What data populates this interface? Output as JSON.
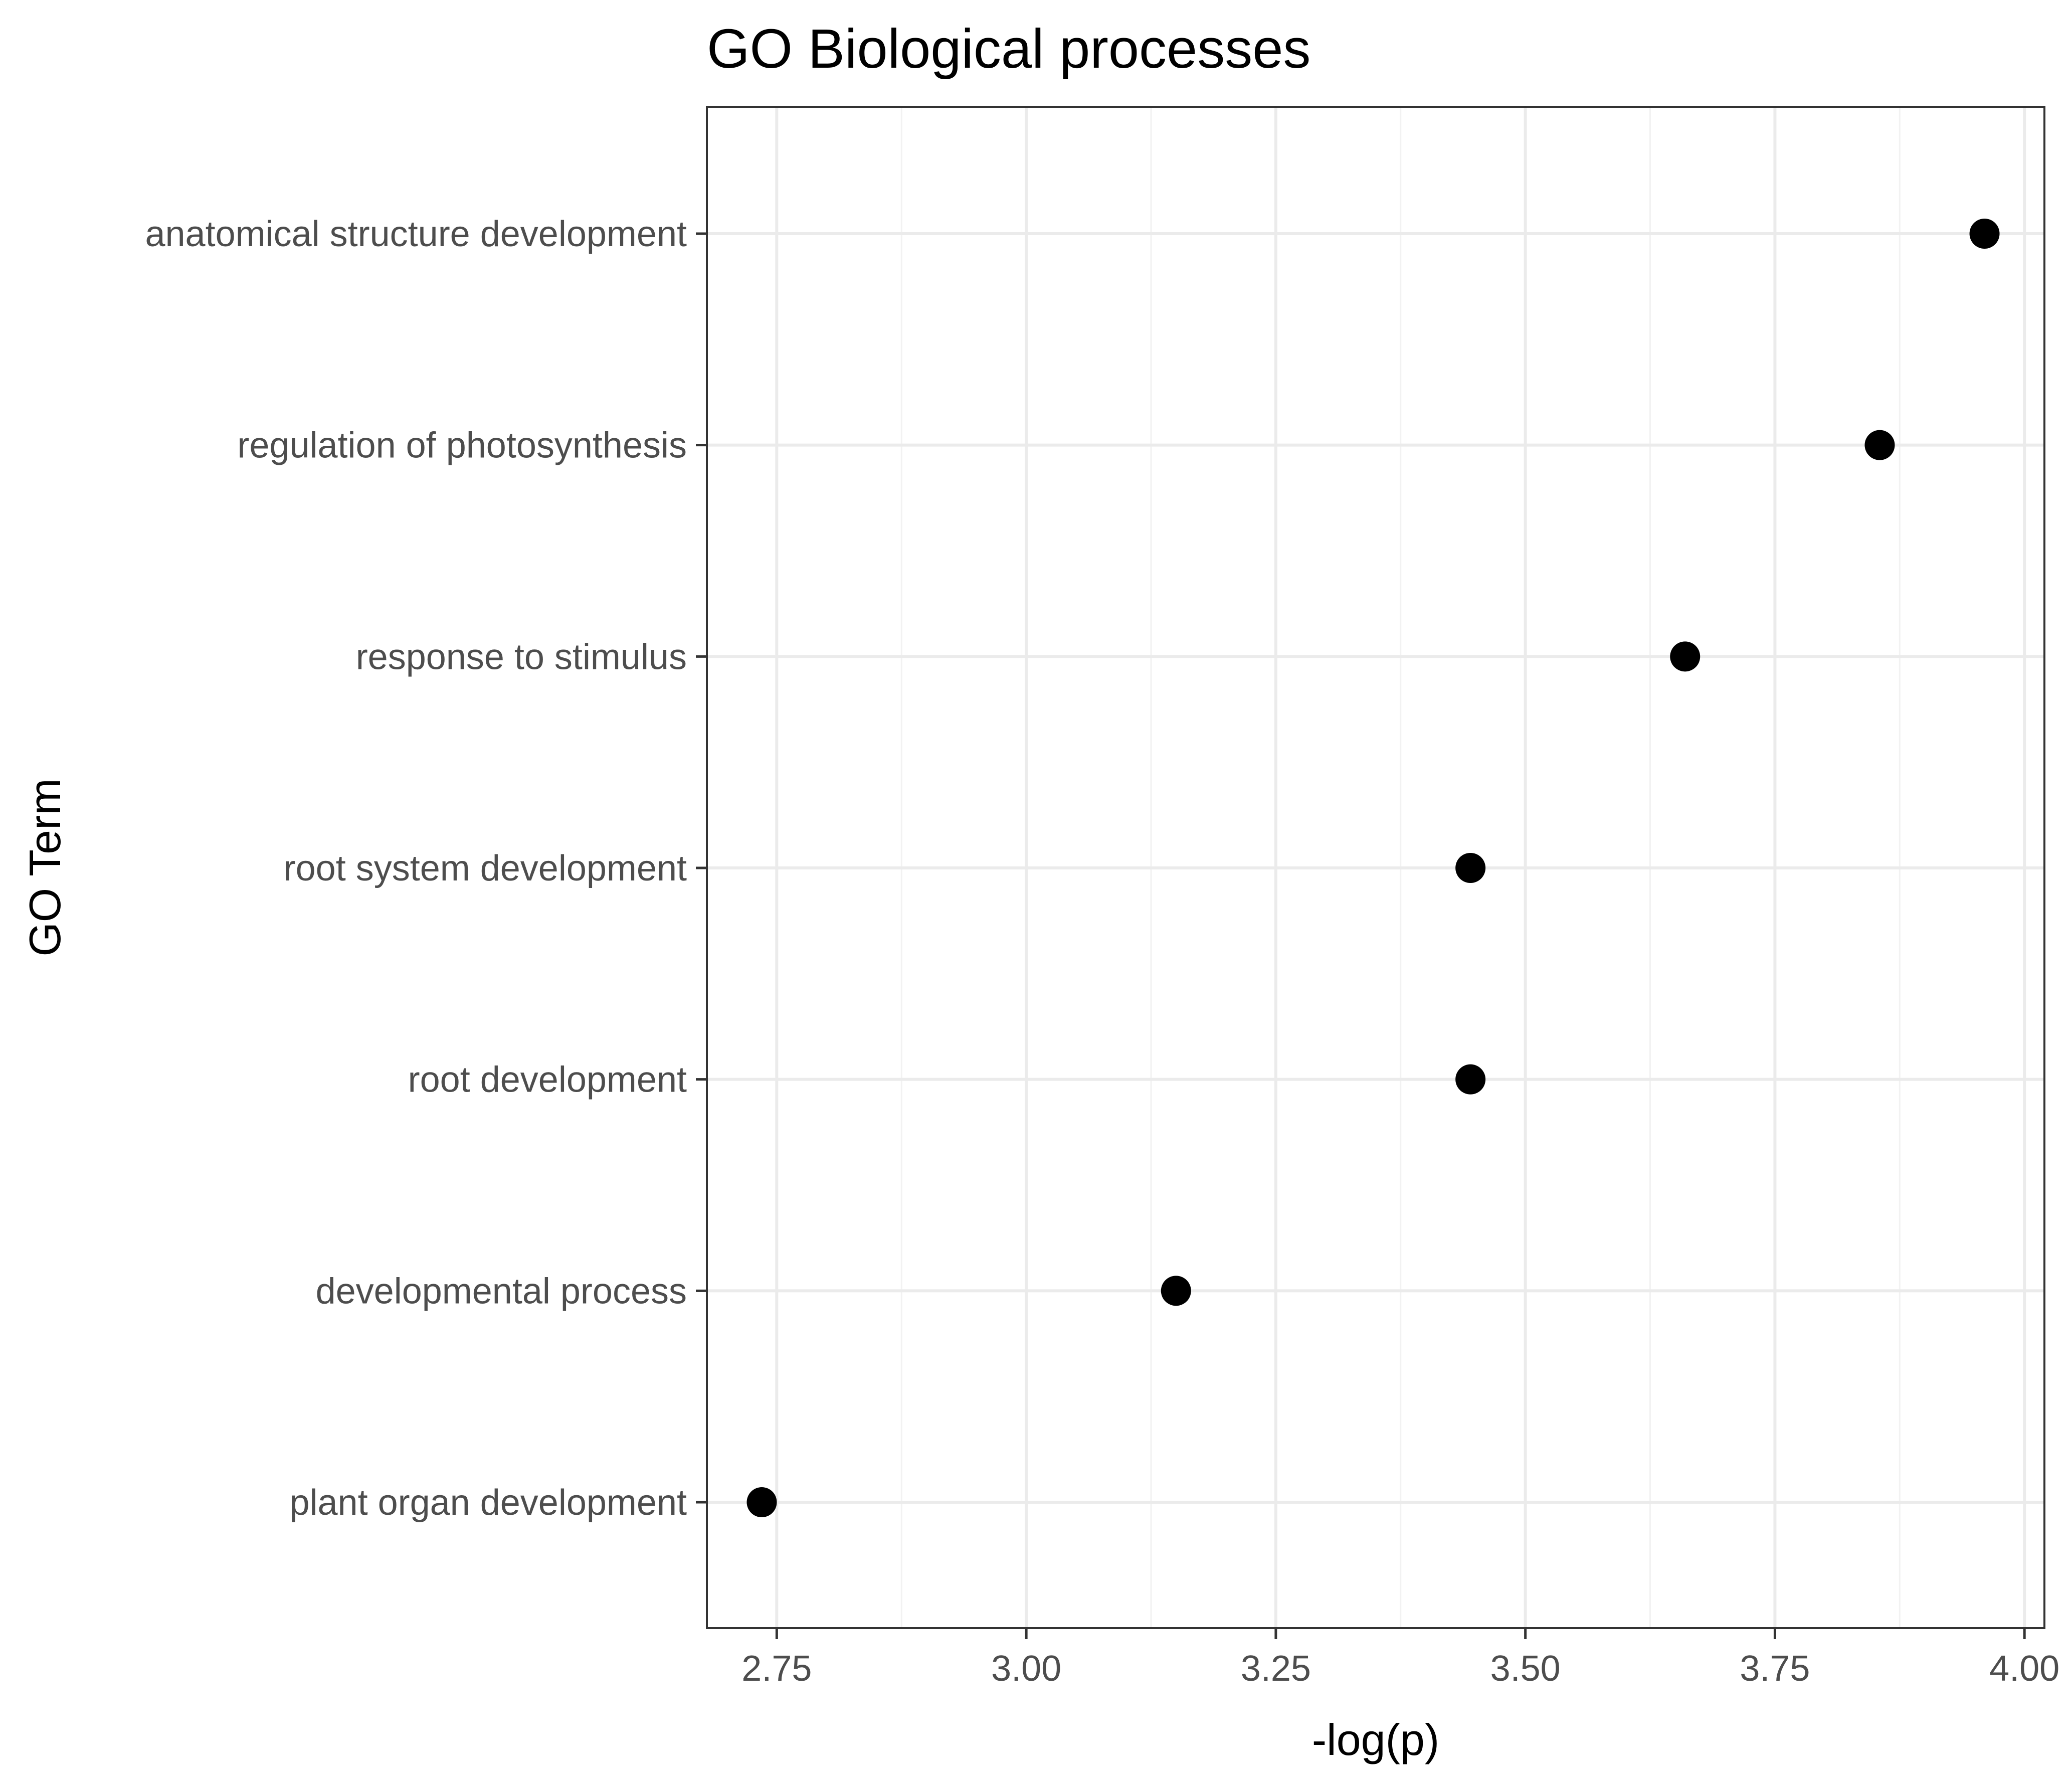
{
  "colors": {
    "background": "#ffffff",
    "panel_border": "#333333",
    "grid_major": "#ebebeb",
    "grid_minor": "#f2f2f2",
    "point": "#000000",
    "tick_label": "#4d4d4d"
  },
  "chart_data": {
    "type": "scatter",
    "title": "GO Biological processes",
    "xlabel": "-log(p)",
    "ylabel": "GO Term",
    "xlim": [
      2.68,
      4.02
    ],
    "x_ticks": [
      2.75,
      3.0,
      3.25,
      3.5,
      3.75,
      4.0
    ],
    "x_tick_labels": [
      "2.75",
      "3.00",
      "3.25",
      "3.50",
      "3.75",
      "4.00"
    ],
    "grid": true,
    "legend": "none",
    "categories": [
      "anatomical structure development",
      "regulation of photosynthesis",
      "response to stimulus",
      "root system development",
      "root development",
      "developmental process",
      "plant organ development"
    ],
    "points": [
      {
        "term": "anatomical structure development",
        "x": 3.96
      },
      {
        "term": "regulation of photosynthesis",
        "x": 3.855
      },
      {
        "term": "response to stimulus",
        "x": 3.66
      },
      {
        "term": "root system development",
        "x": 3.445
      },
      {
        "term": "root development",
        "x": 3.445
      },
      {
        "term": "developmental process",
        "x": 3.15
      },
      {
        "term": "plant organ development",
        "x": 2.735
      }
    ]
  }
}
